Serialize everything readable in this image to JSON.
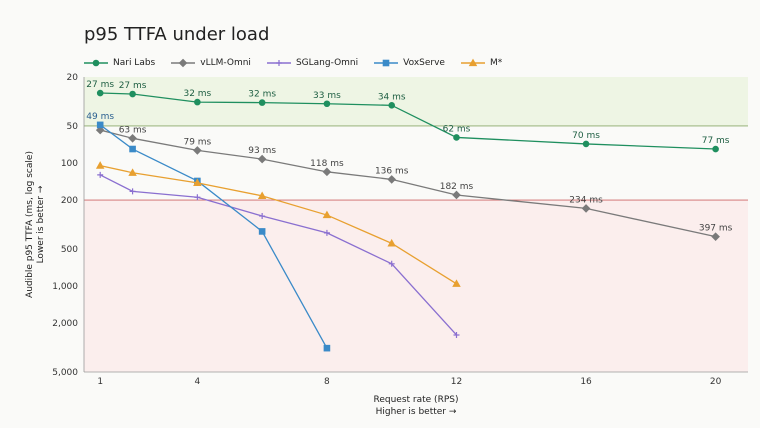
{
  "title": "p95 TTFA under load",
  "chart_data": {
    "type": "line",
    "title": "p95 TTFA under load",
    "xlabel": "Request rate (RPS)",
    "xlabel_note": "Higher is better →",
    "ylabel": "Audible p95 TTFA (ms, log scale)",
    "ylabel_note": "Lower is better →",
    "y_scale": "log",
    "y_inverted": true,
    "xlim": [
      0.5,
      21
    ],
    "ylim": [
      20,
      5000
    ],
    "x_ticks": [
      1,
      4,
      8,
      12,
      16,
      20
    ],
    "y_ticks": [
      {
        "value": 20,
        "label": "20"
      },
      {
        "value": 50,
        "label": "50"
      },
      {
        "value": 100,
        "label": "100"
      },
      {
        "value": 200,
        "label": "200"
      },
      {
        "value": 500,
        "label": "500"
      },
      {
        "value": 1000,
        "label": "1,000"
      },
      {
        "value": 2000,
        "label": "2,000"
      },
      {
        "value": 5000,
        "label": "5,000"
      }
    ],
    "bands": [
      {
        "from": 20,
        "to": 50,
        "color": "#eef5e4"
      },
      {
        "from": 200,
        "to": 5000,
        "color": "#fbeeed"
      }
    ],
    "reference_lines": [
      {
        "value": 50,
        "color": "#8aa86a"
      },
      {
        "value": 200,
        "color": "#cc6666"
      }
    ],
    "grid": false,
    "legend": "top-left",
    "series": [
      {
        "name": "Nari Labs",
        "color": "#1f8f5f",
        "marker": "circle",
        "x": [
          1,
          2,
          4,
          6,
          8,
          10,
          12,
          16,
          20
        ],
        "y": [
          27,
          27.5,
          32,
          32.3,
          33,
          34,
          62,
          70,
          77
        ],
        "labels": [
          "27 ms",
          "27 ms",
          "32 ms",
          "32 ms",
          "33 ms",
          "34 ms",
          "62 ms",
          "70 ms",
          "77 ms"
        ]
      },
      {
        "name": "vLLM-Omni",
        "color": "#7a7a7a",
        "marker": "diamond",
        "x": [
          1,
          2,
          4,
          6,
          8,
          10,
          12,
          16,
          20
        ],
        "y": [
          54,
          63,
          79,
          93,
          118,
          136,
          182,
          234,
          397
        ],
        "labels": [
          "",
          "63 ms",
          "79 ms",
          "93 ms",
          "118 ms",
          "136 ms",
          "182 ms",
          "234 ms",
          "397 ms"
        ]
      },
      {
        "name": "SGLang-Omni",
        "color": "#8a6fd0",
        "marker": "plus",
        "x": [
          1,
          2,
          4,
          6,
          8,
          10,
          12
        ],
        "y": [
          125,
          170,
          190,
          270,
          370,
          660,
          2500
        ],
        "labels": []
      },
      {
        "name": "VoxServe",
        "color": "#3a8ac8",
        "marker": "square",
        "x": [
          1,
          2,
          4,
          6,
          8
        ],
        "y": [
          49,
          77,
          140,
          360,
          3200
        ],
        "labels": [
          "49 ms",
          "",
          "",
          "",
          ""
        ]
      },
      {
        "name": "M*",
        "color": "#e8a030",
        "marker": "triangle",
        "x": [
          1,
          2,
          4,
          6,
          8,
          10,
          12
        ],
        "y": [
          105,
          120,
          145,
          185,
          265,
          450,
          960
        ],
        "labels": []
      }
    ]
  }
}
